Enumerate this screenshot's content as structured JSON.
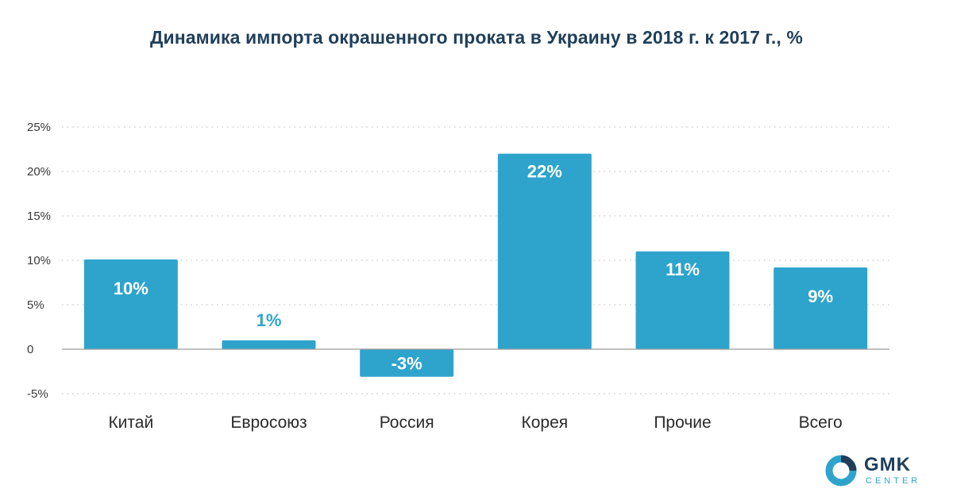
{
  "title": "Динамика импорта окрашенного проката в Украину в 2018 г. к 2017 г., %",
  "chart_data": {
    "type": "bar",
    "title": "Динамика импорта окрашенного проката в Украину в 2018 г. к 2017 г., %",
    "categories": [
      "Китай",
      "Евросоюз",
      "Россия",
      "Корея",
      "Прочие",
      "Всего"
    ],
    "values": [
      10.1,
      1,
      -3.1,
      22,
      11,
      9.2
    ],
    "data_labels": [
      "10%",
      "1%",
      "-3%",
      "22%",
      "11%",
      "9%"
    ],
    "ylim": [
      -5,
      25
    ],
    "yticks": [
      -5,
      0,
      5,
      10,
      15,
      20,
      25
    ],
    "ytick_labels": [
      "-5%",
      "0",
      "5%",
      "10%",
      "15%",
      "20%",
      "25%"
    ],
    "grid": true,
    "bar_color": "#2ea4cc",
    "xlabel": "",
    "ylabel": ""
  },
  "logo": {
    "name": "GMK",
    "sub": "CENTER",
    "colors": {
      "primary": "#2ea4cc",
      "dark": "#1f3f5a"
    }
  }
}
